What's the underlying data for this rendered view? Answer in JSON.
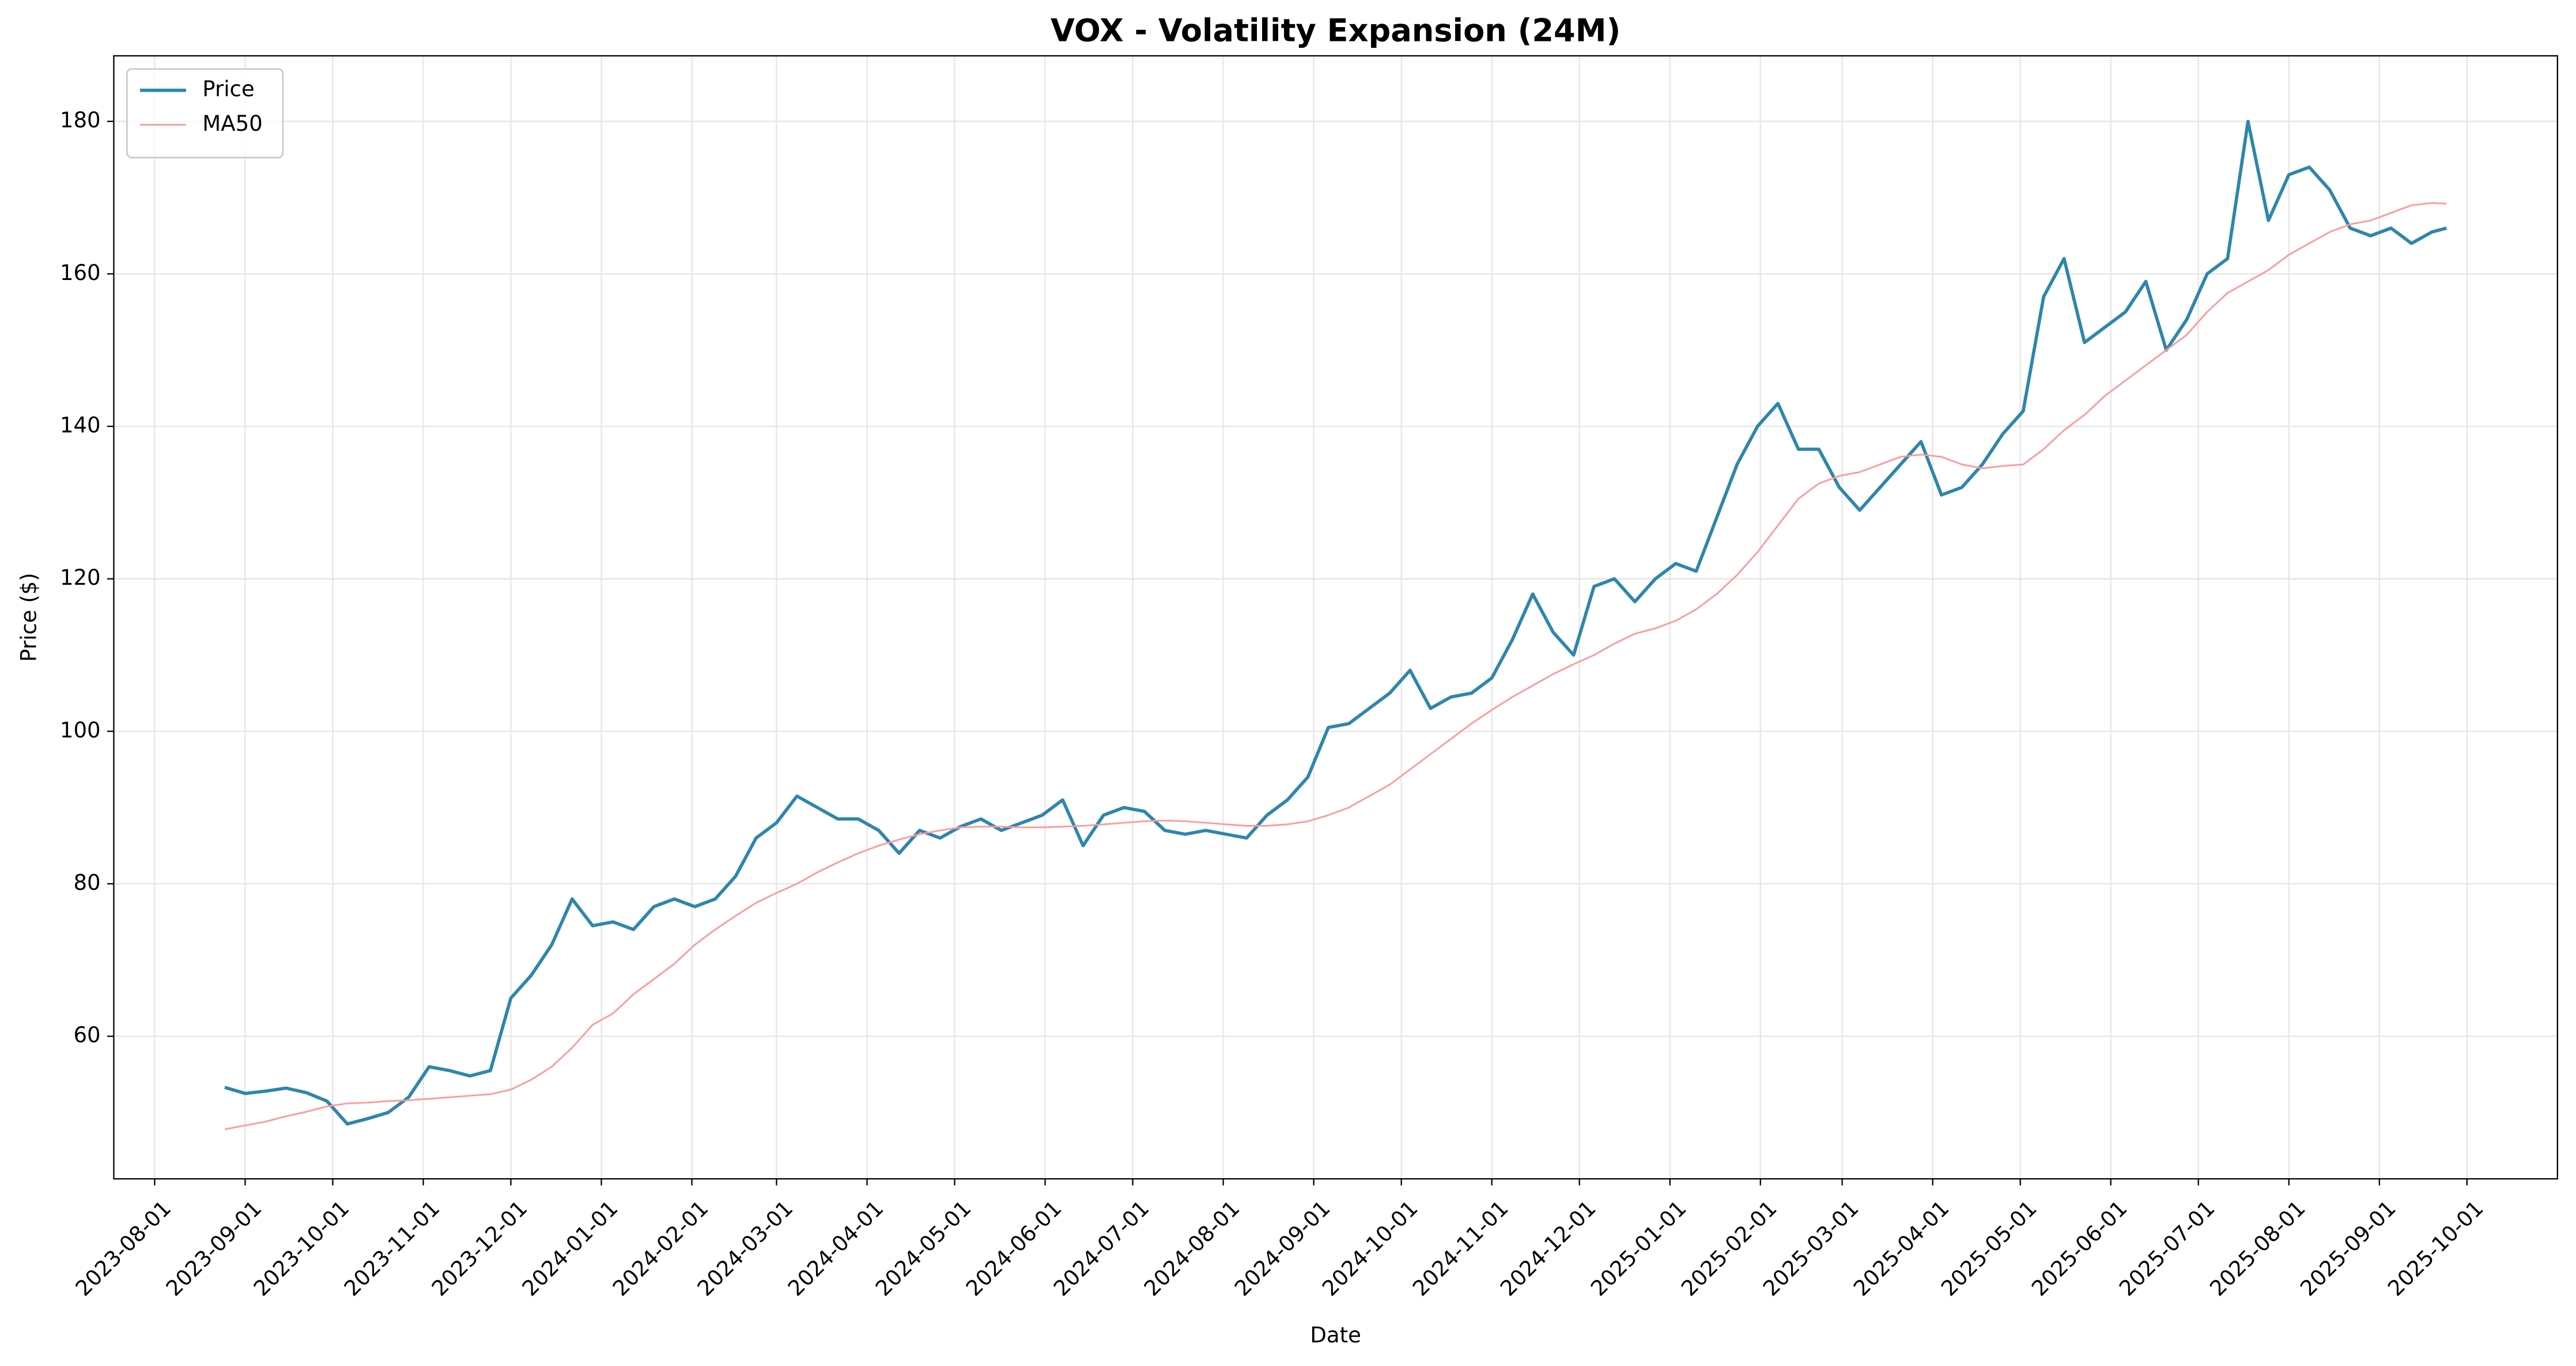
{
  "chart_data": {
    "type": "line",
    "title": "VOX - Volatility Expansion (24M)",
    "x_label": "Date",
    "y_label": "Price ($)",
    "x": [
      "2023-08-25",
      "2023-09-01",
      "2023-09-08",
      "2023-09-15",
      "2023-09-22",
      "2023-09-29",
      "2023-10-06",
      "2023-10-13",
      "2023-10-20",
      "2023-10-27",
      "2023-11-03",
      "2023-11-10",
      "2023-11-17",
      "2023-11-24",
      "2023-12-01",
      "2023-12-08",
      "2023-12-15",
      "2023-12-22",
      "2023-12-29",
      "2024-01-05",
      "2024-01-12",
      "2024-01-19",
      "2024-01-26",
      "2024-02-02",
      "2024-02-09",
      "2024-02-16",
      "2024-02-23",
      "2024-03-01",
      "2024-03-08",
      "2024-03-15",
      "2024-03-22",
      "2024-03-29",
      "2024-04-05",
      "2024-04-12",
      "2024-04-19",
      "2024-04-26",
      "2024-05-03",
      "2024-05-10",
      "2024-05-17",
      "2024-05-24",
      "2024-05-31",
      "2024-06-07",
      "2024-06-14",
      "2024-06-21",
      "2024-06-28",
      "2024-07-05",
      "2024-07-12",
      "2024-07-19",
      "2024-07-26",
      "2024-08-02",
      "2024-08-09",
      "2024-08-16",
      "2024-08-23",
      "2024-08-30",
      "2024-09-06",
      "2024-09-13",
      "2024-09-20",
      "2024-09-27",
      "2024-10-04",
      "2024-10-11",
      "2024-10-18",
      "2024-10-25",
      "2024-11-01",
      "2024-11-08",
      "2024-11-15",
      "2024-11-22",
      "2024-11-29",
      "2024-12-06",
      "2024-12-13",
      "2024-12-20",
      "2024-12-27",
      "2025-01-03",
      "2025-01-10",
      "2025-01-17",
      "2025-01-24",
      "2025-01-31",
      "2025-02-07",
      "2025-02-14",
      "2025-02-21",
      "2025-02-28",
      "2025-03-07",
      "2025-03-14",
      "2025-03-21",
      "2025-03-28",
      "2025-04-04",
      "2025-04-11",
      "2025-04-18",
      "2025-04-25",
      "2025-05-02",
      "2025-05-09",
      "2025-05-16",
      "2025-05-23",
      "2025-05-30",
      "2025-06-06",
      "2025-06-13",
      "2025-06-20",
      "2025-06-27",
      "2025-07-04",
      "2025-07-11",
      "2025-07-18",
      "2025-07-25",
      "2025-08-01",
      "2025-08-08",
      "2025-08-15",
      "2025-08-22",
      "2025-08-29",
      "2025-09-05",
      "2025-09-12",
      "2025-09-19",
      "2025-09-24"
    ],
    "series": [
      {
        "name": "Price",
        "color": "#2e86ab",
        "width": 2,
        "values": [
          53.3,
          52.5,
          52.8,
          53.2,
          52.6,
          51.5,
          48.5,
          49.2,
          50.0,
          52.0,
          56.0,
          55.5,
          54.8,
          55.5,
          65.0,
          68.0,
          72.0,
          78.0,
          74.5,
          75.0,
          74.0,
          77.0,
          78.0,
          77.0,
          78.0,
          81.0,
          86.0,
          88.0,
          91.5,
          90.0,
          88.5,
          88.5,
          87.0,
          84.0,
          87.0,
          86.0,
          87.5,
          88.5,
          87.0,
          88.0,
          89.0,
          91.0,
          85.0,
          89.0,
          90.0,
          89.5,
          87.0,
          86.5,
          87.0,
          86.5,
          86.0,
          89.0,
          91.0,
          94.0,
          100.5,
          101.0,
          103.0,
          105.0,
          108.0,
          103.0,
          104.5,
          105.0,
          107.0,
          112.0,
          118.0,
          113.0,
          110.0,
          119.0,
          120.0,
          117.0,
          120.0,
          122.0,
          121.0,
          128.0,
          135.0,
          140.0,
          143.0,
          137.0,
          137.0,
          132.0,
          129.0,
          132.0,
          135.0,
          138.0,
          131.0,
          132.0,
          135.0,
          139.0,
          142.0,
          157.0,
          162.0,
          151.0,
          153.0,
          155.0,
          159.0,
          150.0,
          154.0,
          160.0,
          162.0,
          180.0,
          167.0,
          173.0,
          174.0,
          171.0,
          166.0,
          165.0,
          166.0,
          164.0,
          165.5,
          166.0
        ]
      },
      {
        "name": "MA50",
        "color": "#ff9999",
        "width": 1,
        "values": [
          47.8,
          48.3,
          48.8,
          49.5,
          50.1,
          50.8,
          51.2,
          51.3,
          51.5,
          51.6,
          51.8,
          52.0,
          52.2,
          52.4,
          53.0,
          54.3,
          56.0,
          58.5,
          61.5,
          63.0,
          65.5,
          67.5,
          69.5,
          72.0,
          74.0,
          75.8,
          77.5,
          78.8,
          80.0,
          81.5,
          82.8,
          84.0,
          85.0,
          85.8,
          86.5,
          87.0,
          87.4,
          87.5,
          87.5,
          87.4,
          87.4,
          87.5,
          87.6,
          87.8,
          88.0,
          88.2,
          88.3,
          88.2,
          88.0,
          87.8,
          87.6,
          87.6,
          87.8,
          88.2,
          89.0,
          90.0,
          91.5,
          93.0,
          95.0,
          97.0,
          99.0,
          101.0,
          102.8,
          104.5,
          106.0,
          107.5,
          108.8,
          110.0,
          111.5,
          112.8,
          113.5,
          114.5,
          116.0,
          118.0,
          120.5,
          123.5,
          127.0,
          130.5,
          132.5,
          133.5,
          134.0,
          135.0,
          136.0,
          136.3,
          136.0,
          135.0,
          134.5,
          134.8,
          135.0,
          137.0,
          139.5,
          141.5,
          144.0,
          146.0,
          148.0,
          150.0,
          152.0,
          155.0,
          157.5,
          159.0,
          160.5,
          162.5,
          164.0,
          165.5,
          166.5,
          167.0,
          168.0,
          169.0,
          169.3,
          169.2
        ]
      }
    ],
    "xlim": [
      "2023-07-18",
      "2025-11-01"
    ],
    "xticks": [
      "2023-08-01",
      "2023-09-01",
      "2023-10-01",
      "2023-11-01",
      "2023-12-01",
      "2024-01-01",
      "2024-02-01",
      "2024-03-01",
      "2024-04-01",
      "2024-05-01",
      "2024-06-01",
      "2024-07-01",
      "2024-08-01",
      "2024-09-01",
      "2024-10-01",
      "2024-11-01",
      "2024-12-01",
      "2025-01-01",
      "2025-02-01",
      "2025-03-01",
      "2025-04-01",
      "2025-05-01",
      "2025-06-01",
      "2025-07-01",
      "2025-08-01",
      "2025-09-01",
      "2025-10-01"
    ],
    "ylim": [
      41.3,
      188.6
    ],
    "yticks": [
      60,
      80,
      100,
      120,
      140,
      160,
      180
    ],
    "grid": true,
    "legend": "upper-left"
  }
}
